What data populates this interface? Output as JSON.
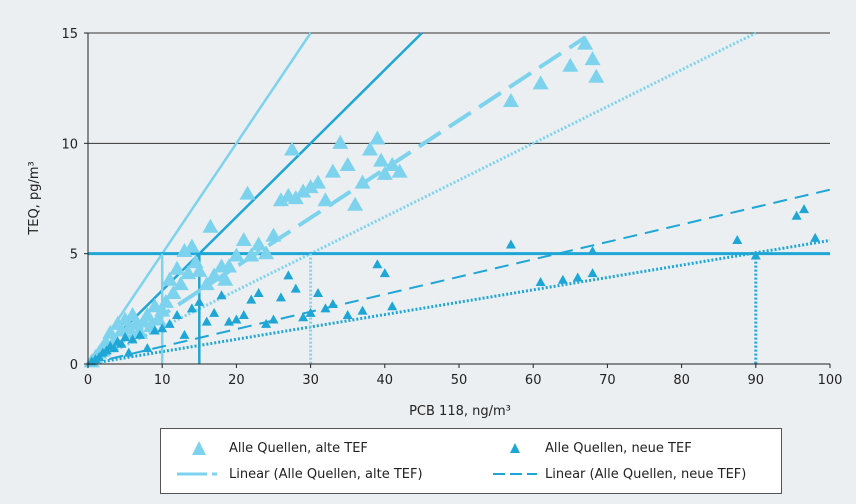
{
  "colors": {
    "background": "#eceff1",
    "alt_tef": "#7dd3ee",
    "neu_tef": "#1ea6d6",
    "ref_line": "#1ea6d6",
    "grid": "#333333"
  },
  "chart_data": {
    "type": "scatter",
    "xlabel": "PCB 118, ng/m³",
    "ylabel": "TEQ, pg/m³",
    "xlim": [
      0,
      100
    ],
    "ylim": [
      0,
      15
    ],
    "xticks": [
      "0",
      "10",
      "20",
      "30",
      "40",
      "50",
      "60",
      "70",
      "80",
      "90",
      "100"
    ],
    "yticks": [
      "0",
      "5",
      "10",
      "15"
    ],
    "grid": "horizontal at 10 and 15",
    "legend_position": "bottom",
    "series": [
      {
        "name": "Alle Quellen, alte TEF",
        "marker": "triangle-large",
        "color": "#7dd3ee",
        "points": [
          [
            0.5,
            0.1
          ],
          [
            1,
            0.3
          ],
          [
            1.5,
            0.5
          ],
          [
            2,
            0.6
          ],
          [
            2.5,
            0.9
          ],
          [
            3,
            1.4
          ],
          [
            3.5,
            1.0
          ],
          [
            4,
            1.8
          ],
          [
            4.5,
            1.5
          ],
          [
            5,
            2.0
          ],
          [
            5.5,
            1.6
          ],
          [
            6,
            2.2
          ],
          [
            6.5,
            1.8
          ],
          [
            7,
            1.4
          ],
          [
            7.5,
            1.9
          ],
          [
            8,
            2.2
          ],
          [
            8.5,
            1.7
          ],
          [
            9,
            2.6
          ],
          [
            9.5,
            2.0
          ],
          [
            10,
            2.4
          ],
          [
            10.5,
            2.8
          ],
          [
            11,
            3.8
          ],
          [
            11.5,
            3.2
          ],
          [
            12,
            4.3
          ],
          [
            12.5,
            3.6
          ],
          [
            13,
            5.1
          ],
          [
            13.5,
            4.1
          ],
          [
            14,
            5.3
          ],
          [
            14.5,
            4.6
          ],
          [
            15,
            4.2
          ],
          [
            16,
            3.6
          ],
          [
            16.5,
            6.2
          ],
          [
            17,
            4.0
          ],
          [
            18,
            4.4
          ],
          [
            18.5,
            3.8
          ],
          [
            19,
            4.4
          ],
          [
            20,
            4.9
          ],
          [
            21,
            5.6
          ],
          [
            21.5,
            7.7
          ],
          [
            22,
            4.9
          ],
          [
            23,
            5.4
          ],
          [
            24,
            5.0
          ],
          [
            25,
            5.8
          ],
          [
            26,
            7.4
          ],
          [
            27,
            7.6
          ],
          [
            27.5,
            9.7
          ],
          [
            28,
            7.5
          ],
          [
            29,
            7.8
          ],
          [
            30,
            8.0
          ],
          [
            31,
            8.2
          ],
          [
            32,
            7.4
          ],
          [
            33,
            8.7
          ],
          [
            34,
            10.0
          ],
          [
            35,
            9.0
          ],
          [
            36,
            7.2
          ],
          [
            37,
            8.2
          ],
          [
            38,
            9.7
          ],
          [
            39,
            10.2
          ],
          [
            39.5,
            9.2
          ],
          [
            40,
            8.6
          ],
          [
            41,
            9.0
          ],
          [
            42,
            8.7
          ],
          [
            57,
            11.9
          ],
          [
            61,
            12.7
          ],
          [
            65,
            13.5
          ],
          [
            67,
            14.5
          ],
          [
            68,
            13.8
          ],
          [
            68.5,
            13.0
          ]
        ]
      },
      {
        "name": "Alle Quellen, neue TEF",
        "marker": "triangle-small",
        "color": "#1ea6d6",
        "points": [
          [
            0.5,
            0.1
          ],
          [
            1,
            0.2
          ],
          [
            1.5,
            0.3
          ],
          [
            2,
            0.5
          ],
          [
            2.5,
            0.6
          ],
          [
            3,
            0.8
          ],
          [
            3.5,
            0.7
          ],
          [
            4,
            1.0
          ],
          [
            4.5,
            0.9
          ],
          [
            5,
            1.2
          ],
          [
            5.5,
            0.5
          ],
          [
            6,
            1.1
          ],
          [
            7,
            1.3
          ],
          [
            8,
            0.7
          ],
          [
            9,
            1.5
          ],
          [
            10,
            1.6
          ],
          [
            11,
            1.8
          ],
          [
            12,
            2.2
          ],
          [
            13,
            1.3
          ],
          [
            14,
            2.5
          ],
          [
            15,
            2.8
          ],
          [
            16,
            1.9
          ],
          [
            17,
            2.3
          ],
          [
            18,
            3.1
          ],
          [
            19,
            1.9
          ],
          [
            20,
            2.0
          ],
          [
            21,
            2.2
          ],
          [
            22,
            2.9
          ],
          [
            23,
            3.2
          ],
          [
            24,
            1.8
          ],
          [
            25,
            2.0
          ],
          [
            26,
            3.0
          ],
          [
            27,
            4.0
          ],
          [
            28,
            3.4
          ],
          [
            29,
            2.1
          ],
          [
            30,
            2.3
          ],
          [
            31,
            3.2
          ],
          [
            32,
            2.5
          ],
          [
            33,
            2.7
          ],
          [
            35,
            2.2
          ],
          [
            37,
            2.4
          ],
          [
            39,
            4.5
          ],
          [
            40,
            4.1
          ],
          [
            41,
            2.6
          ],
          [
            57,
            5.4
          ],
          [
            61,
            3.7
          ],
          [
            64,
            3.8
          ],
          [
            66,
            3.9
          ],
          [
            68,
            4.1
          ],
          [
            68,
            5.1
          ],
          [
            87.5,
            5.6
          ],
          [
            90,
            4.9
          ],
          [
            95.5,
            6.7
          ],
          [
            96.5,
            7.0
          ],
          [
            98,
            5.7
          ]
        ]
      }
    ],
    "fit_lines": [
      {
        "name": "Linear (Alle Quellen, alte TEF)",
        "style": "dashed-long",
        "color": "#7dd3ee",
        "from": [
          0,
          0
        ],
        "to": [
          67,
          14.8
        ]
      },
      {
        "name": "Linear (Alle Quellen, neue TEF)",
        "style": "dashed",
        "color": "#1ea6d6",
        "from": [
          0,
          0
        ],
        "to": [
          100,
          7.9
        ]
      }
    ],
    "reference_lines": [
      {
        "style": "solid",
        "color": "#7dd3ee",
        "from": [
          0,
          0
        ],
        "to": [
          30,
          15
        ]
      },
      {
        "style": "solid",
        "color": "#1ea6d6",
        "from": [
          0,
          0
        ],
        "to": [
          45,
          15
        ]
      },
      {
        "style": "dotted",
        "color": "#7dd3ee",
        "from": [
          0,
          0
        ],
        "to": [
          90,
          15
        ]
      },
      {
        "style": "dotted",
        "color": "#1ea6d6",
        "from": [
          0,
          0
        ],
        "to": [
          100,
          5.6
        ]
      },
      {
        "style": "solid-horizontal",
        "color": "#1ea6d6",
        "at_y": 5
      },
      {
        "style": "solid-vertical",
        "color": "#7dd3ee",
        "at_x": 10,
        "to_y": 5
      },
      {
        "style": "solid-vertical",
        "color": "#1ea6d6",
        "at_x": 15,
        "to_y": 5
      },
      {
        "style": "dotted-vertical",
        "color": "#7dd3ee",
        "at_x": 30,
        "to_y": 5
      },
      {
        "style": "dotted-vertical",
        "color": "#1ea6d6",
        "at_x": 90,
        "to_y": 5
      }
    ]
  },
  "legend": {
    "items": [
      {
        "label": "Alle Quellen, alte TEF"
      },
      {
        "label": "Alle Quellen, neue TEF"
      },
      {
        "label": "Linear (Alle Quellen, alte TEF)"
      },
      {
        "label": "Linear (Alle Quellen, neue TEF)"
      }
    ]
  }
}
